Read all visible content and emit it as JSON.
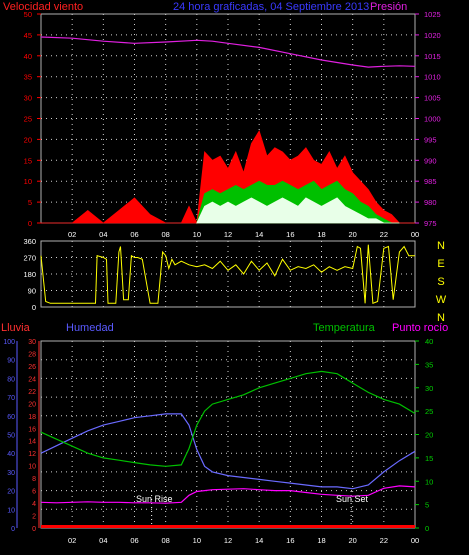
{
  "header": {
    "wind_label": "Velocidad viento",
    "title": "24 hora graficadas, 04 Septiembre 2013",
    "pressure_label": "Presión"
  },
  "bottom_header": {
    "rain_label": "Lluvia",
    "humidity_label": "Humedad",
    "temperature_label": "Temperatura",
    "dewpoint_label": "Punto rocío"
  },
  "annotations": {
    "sunrise": "Sun Rise",
    "sunset": "Sun Set"
  },
  "colors": {
    "wind_axis": "#ff0000",
    "pressure": "#e020e0",
    "title": "#3a3aff",
    "wind_gust": "#ff0000",
    "wind_avg": "#00c000",
    "wind_min": "#e8ffe8",
    "direction": "#ffff00",
    "rain": "#ff0000",
    "humidity": "#6a6aff",
    "temperature": "#00c000",
    "dewpoint": "#ff00ff",
    "rain_axis": "#ff3030",
    "humidity_axis": "#5a5aff",
    "temp_axis": "#00d000"
  },
  "chart_data": [
    {
      "id": "wind-pressure",
      "type": "area",
      "x_ticks": [
        "02",
        "04",
        "06",
        "08",
        "10",
        "12",
        "14",
        "16",
        "18",
        "20",
        "22",
        "00"
      ],
      "y_left_ticks": [
        "0",
        "5",
        "10",
        "15",
        "20",
        "25",
        "30",
        "35",
        "40",
        "45",
        "50"
      ],
      "y_right_ticks": [
        "975",
        "980",
        "985",
        "990",
        "995",
        "1000",
        "1005",
        "1010",
        "1015",
        "1020",
        "1025"
      ],
      "ylim_left": [
        0,
        50
      ],
      "ylim_right": [
        975,
        1025
      ],
      "xlim": [
        0,
        24
      ],
      "series": [
        {
          "name": "Velocidad viento",
          "kind": "gust",
          "x": [
            0,
            1,
            2,
            3,
            4,
            5,
            6,
            7,
            8,
            9,
            9.5,
            10,
            10.5,
            11,
            11.5,
            12,
            12.5,
            13,
            13.5,
            14,
            14.5,
            15,
            15.5,
            16,
            16.5,
            17,
            17.5,
            18,
            18.5,
            19,
            19.5,
            20,
            20.5,
            21,
            21.5,
            22,
            22.5,
            23,
            24
          ],
          "values": [
            0,
            0,
            0,
            3,
            0,
            3,
            6,
            2,
            0,
            0,
            4,
            0,
            17,
            15,
            16,
            13,
            17,
            12,
            19,
            22,
            16,
            18,
            17,
            15,
            16,
            18,
            15,
            14,
            17,
            13,
            16,
            12,
            10,
            8,
            5,
            3,
            2,
            0,
            0
          ]
        },
        {
          "kind": "avg",
          "x": [
            10,
            10.5,
            11,
            11.5,
            12,
            12.5,
            13,
            13.5,
            14,
            14.5,
            15,
            15.5,
            16,
            16.5,
            17,
            17.5,
            18,
            18.5,
            19,
            19.5,
            20,
            20.5,
            21,
            21.5,
            22,
            22.5,
            23
          ],
          "values": [
            0,
            7,
            8,
            7,
            8,
            9,
            8,
            9,
            10,
            9,
            9,
            10,
            9,
            8,
            9,
            10,
            8,
            9,
            10,
            8,
            7,
            5,
            4,
            2,
            1,
            0,
            0
          ]
        },
        {
          "kind": "min",
          "x": [
            10,
            10.5,
            11,
            11.5,
            12,
            12.5,
            13,
            13.5,
            14,
            14.5,
            15,
            15.5,
            16,
            16.5,
            17,
            17.5,
            18,
            18.5,
            19,
            19.5,
            20,
            20.5,
            21,
            21.5,
            22,
            22.5,
            23
          ],
          "values": [
            0,
            4,
            5,
            4,
            5,
            4,
            5,
            6,
            5,
            4,
            5,
            6,
            5,
            4,
            6,
            5,
            4,
            5,
            6,
            4,
            3,
            2,
            1,
            1,
            0,
            0,
            0
          ]
        },
        {
          "name": "Presión",
          "kind": "pressure",
          "x": [
            0,
            2,
            4,
            6,
            8,
            10,
            11,
            12,
            14,
            16,
            18,
            20,
            21,
            22,
            23,
            24
          ],
          "values": [
            1019.5,
            1019.2,
            1018.5,
            1018.0,
            1018.3,
            1018.7,
            1018.5,
            1018.0,
            1017.0,
            1015.5,
            1014.0,
            1012.8,
            1012.3,
            1012.5,
            1012.6,
            1012.5
          ]
        }
      ]
    },
    {
      "id": "wind-direction",
      "type": "line",
      "x_ticks": [],
      "y_left_ticks": [
        "0",
        "90",
        "180",
        "270",
        "360"
      ],
      "y_right_ticks": [
        "N",
        "W",
        "S",
        "E",
        "N"
      ],
      "ylim": [
        0,
        360
      ],
      "xlim": [
        0,
        24
      ],
      "series": [
        {
          "name": "direction",
          "x": [
            0,
            0.3,
            0.6,
            1,
            2,
            3,
            3.5,
            3.6,
            4,
            4.2,
            4.3,
            4.8,
            5,
            5.1,
            5.3,
            5.6,
            5.8,
            6,
            6.2,
            6.5,
            7,
            7.2,
            7.5,
            7.8,
            8,
            8.2,
            8.4,
            8.6,
            9,
            9.5,
            10,
            10.5,
            11,
            11.5,
            12,
            12.5,
            13,
            13.5,
            14,
            14.5,
            15,
            15.5,
            16,
            16.5,
            17,
            17.5,
            18,
            18.5,
            19,
            19.5,
            20,
            20.3,
            20.5,
            20.8,
            21,
            21.3,
            21.6,
            22,
            22.3,
            22.6,
            23,
            23.3,
            23.6,
            24
          ],
          "values": [
            280,
            30,
            20,
            20,
            20,
            20,
            20,
            280,
            270,
            260,
            20,
            20,
            300,
            330,
            40,
            40,
            280,
            270,
            270,
            260,
            20,
            20,
            20,
            300,
            280,
            210,
            260,
            230,
            250,
            230,
            220,
            230,
            210,
            250,
            200,
            230,
            180,
            250,
            200,
            240,
            170,
            260,
            200,
            220,
            210,
            230,
            190,
            220,
            200,
            220,
            210,
            330,
            320,
            20,
            340,
            20,
            30,
            320,
            330,
            40,
            300,
            330,
            280,
            280
          ]
        }
      ]
    },
    {
      "id": "temp-humidity",
      "type": "line",
      "x_ticks": [
        "02",
        "04",
        "06",
        "08",
        "10",
        "12",
        "14",
        "16",
        "18",
        "20",
        "22",
        "00"
      ],
      "rain_ticks": [
        "0",
        "2",
        "4",
        "6",
        "8",
        "10",
        "12",
        "14",
        "16",
        "18",
        "20",
        "22",
        "24",
        "26",
        "28",
        "30"
      ],
      "humidity_ticks": [
        "0",
        "10",
        "20",
        "30",
        "40",
        "50",
        "60",
        "70",
        "80",
        "90",
        "100"
      ],
      "temp_ticks": [
        "0",
        "5",
        "10",
        "15",
        "20",
        "25",
        "30",
        "35",
        "40"
      ],
      "ylim_rain": [
        0,
        30
      ],
      "ylim_humidity": [
        0,
        100
      ],
      "ylim_temp": [
        0,
        40
      ],
      "xlim": [
        0,
        24
      ],
      "series": [
        {
          "name": "Lluvia",
          "kind": "rain",
          "x": [
            0,
            24
          ],
          "values": [
            0,
            0
          ]
        },
        {
          "name": "Humedad",
          "kind": "humidity",
          "x": [
            0,
            1,
            2,
            3,
            4,
            5,
            6,
            7,
            8,
            9,
            9.5,
            10,
            10.5,
            11,
            12,
            13,
            14,
            15,
            16,
            17,
            18,
            19,
            20,
            21,
            22,
            23,
            24
          ],
          "values": [
            40,
            44,
            48,
            52,
            55,
            57,
            59,
            60,
            61,
            61,
            55,
            42,
            33,
            30,
            28,
            27,
            26,
            25,
            24,
            23,
            22,
            22,
            21,
            23,
            30,
            36,
            41
          ]
        },
        {
          "name": "Temperatura",
          "kind": "temperature",
          "x": [
            0,
            1,
            2,
            3,
            4,
            5,
            6,
            7,
            8,
            9,
            9.5,
            10,
            10.5,
            11,
            12,
            13,
            14,
            15,
            16,
            17,
            18,
            19,
            20,
            21,
            22,
            23,
            24
          ],
          "values": [
            20.5,
            19,
            17.5,
            16,
            15,
            14.5,
            14,
            13.5,
            13.2,
            13.5,
            17,
            22,
            25,
            26.5,
            27.5,
            28.5,
            30,
            31,
            32,
            33,
            33.5,
            33,
            31,
            29,
            27.5,
            26.5,
            24.5
          ]
        },
        {
          "name": "Punto rocío",
          "kind": "dewpoint",
          "x": [
            0,
            1,
            2,
            3,
            4,
            5,
            6,
            7,
            8,
            9,
            9.5,
            10,
            10.5,
            11,
            12,
            13,
            14,
            15,
            16,
            17,
            18,
            19,
            20,
            21,
            22,
            23,
            24
          ],
          "values": [
            5.5,
            5.4,
            5.5,
            5.6,
            5.5,
            5.5,
            5.4,
            5.4,
            5.3,
            5.5,
            7,
            7.8,
            8,
            8.2,
            8.3,
            8.4,
            8.2,
            8,
            8,
            7.6,
            7.2,
            7,
            6.8,
            7,
            8.5,
            9,
            8.8
          ]
        }
      ]
    }
  ]
}
